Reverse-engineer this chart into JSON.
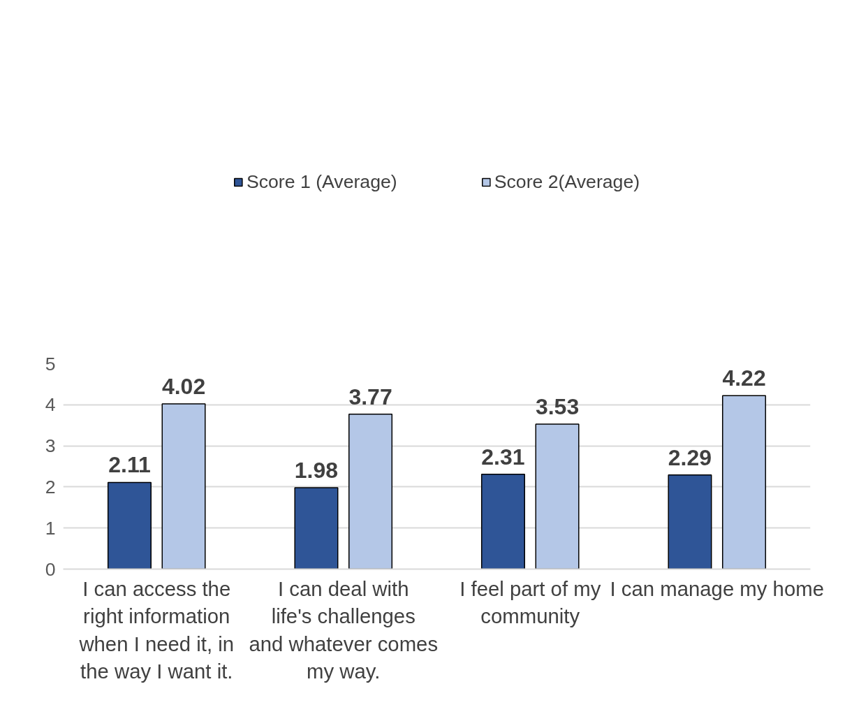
{
  "chart_data": {
    "type": "bar",
    "categories": [
      "I can access the right information when I need it, in the way I want it.",
      "I can deal with life's challenges and whatever comes my way.",
      "I feel part of my community",
      "I can manage my home"
    ],
    "series": [
      {
        "name": "Score 1 (Average)",
        "color": "#2f5597",
        "values": [
          2.11,
          1.98,
          2.31,
          2.29
        ]
      },
      {
        "name": "Score 2(Average)",
        "color": "#b4c7e7",
        "values": [
          4.02,
          3.77,
          3.53,
          4.22
        ]
      }
    ],
    "ylim": [
      0,
      5
    ],
    "yticks": [
      0,
      1,
      2,
      3,
      4,
      5
    ],
    "grid": "y",
    "legend": "top",
    "data_labels": true
  }
}
